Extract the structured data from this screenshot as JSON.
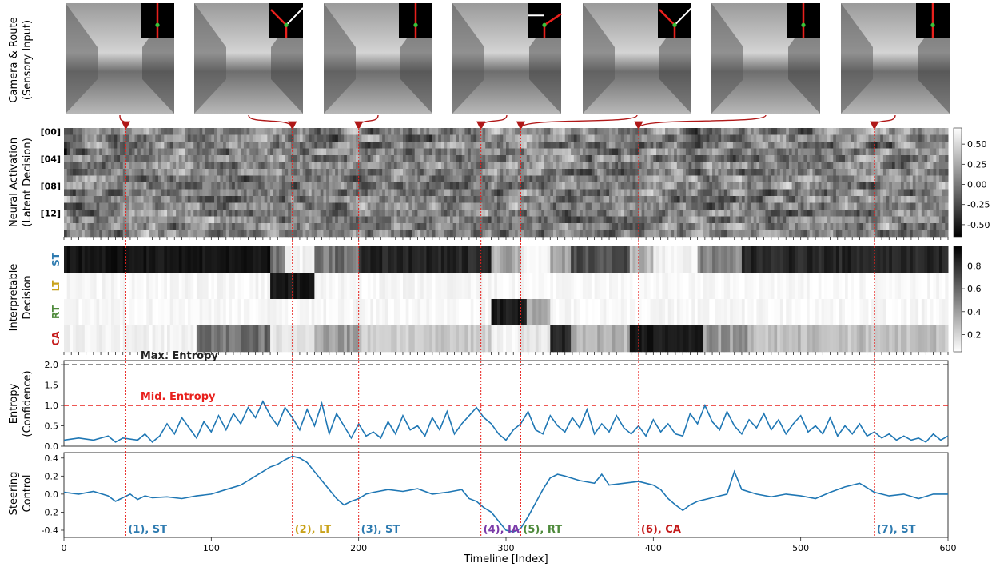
{
  "chart_data": [
    {
      "type": "image",
      "ylabel": [
        "Camera & Route",
        "(Sensory Input)"
      ],
      "frames": [
        {
          "route": "straight"
        },
        {
          "route": "left"
        },
        {
          "route": "straight"
        },
        {
          "route": "right"
        },
        {
          "route": "left"
        },
        {
          "route": "straight"
        },
        {
          "route": "straight"
        }
      ],
      "frame_targets": [
        42,
        155,
        200,
        283,
        310,
        390,
        550
      ]
    },
    {
      "type": "heatmap",
      "ylabel": [
        "Neural Activation",
        "(Latent Decision)"
      ],
      "row_ticks": [
        "[00]",
        "[04]",
        "[08]",
        "[12]"
      ],
      "rows": 16,
      "colorbar": {
        "min": -0.65,
        "max": 0.7,
        "ticks": [
          "0.50",
          "0.25",
          "0.00",
          "-0.25",
          "-0.50"
        ],
        "tick_values": [
          0.5,
          0.25,
          0,
          -0.25,
          -0.5
        ]
      }
    },
    {
      "type": "heatmap",
      "ylabel": [
        "Interpretable",
        "Decision"
      ],
      "rows": [
        {
          "label": "ST",
          "color": "#2e7bb0"
        },
        {
          "label": "LT",
          "color": "#c9a21a"
        },
        {
          "label": "RT",
          "color": "#4e8a3b"
        },
        {
          "label": "CA",
          "color": "#c41a1a"
        }
      ],
      "segments": {
        "ST": [
          [
            0,
            140,
            0.92
          ],
          [
            140,
            150,
            0.5
          ],
          [
            150,
            170,
            0.05
          ],
          [
            170,
            200,
            0.55
          ],
          [
            200,
            290,
            0.85
          ],
          [
            290,
            310,
            0.35
          ],
          [
            310,
            330,
            0.05
          ],
          [
            330,
            345,
            0.4
          ],
          [
            345,
            385,
            0.7
          ],
          [
            385,
            400,
            0.3
          ],
          [
            400,
            430,
            0.05
          ],
          [
            430,
            460,
            0.45
          ],
          [
            460,
            600,
            0.85
          ]
        ],
        "LT": [
          [
            0,
            140,
            0.03
          ],
          [
            140,
            170,
            0.9
          ],
          [
            170,
            300,
            0.03
          ],
          [
            300,
            600,
            0.02
          ]
        ],
        "RT": [
          [
            0,
            290,
            0.03
          ],
          [
            290,
            315,
            0.9
          ],
          [
            315,
            330,
            0.3
          ],
          [
            330,
            600,
            0.03
          ]
        ],
        "CA": [
          [
            0,
            90,
            0.05
          ],
          [
            90,
            140,
            0.55
          ],
          [
            140,
            170,
            0.1
          ],
          [
            170,
            200,
            0.4
          ],
          [
            200,
            290,
            0.2
          ],
          [
            290,
            310,
            0.05
          ],
          [
            310,
            330,
            0.1
          ],
          [
            330,
            345,
            0.85
          ],
          [
            345,
            385,
            0.3
          ],
          [
            385,
            435,
            0.9
          ],
          [
            435,
            465,
            0.4
          ],
          [
            465,
            600,
            0.25
          ]
        ]
      },
      "colorbar": {
        "min": 0.05,
        "max": 0.97,
        "ticks": [
          "0.8",
          "0.6",
          "0.4",
          "0.2"
        ],
        "tick_values": [
          0.8,
          0.6,
          0.4,
          0.2
        ]
      }
    },
    {
      "type": "line",
      "ylabel": [
        "Entropy",
        "(Confidence)"
      ],
      "ylim": [
        0,
        2.1
      ],
      "yticks": [
        "0.0",
        "0.5",
        "1.0",
        "1.5",
        "2.0"
      ],
      "ytick_values": [
        0,
        0.5,
        1.0,
        1.5,
        2.0
      ],
      "hlines": [
        {
          "value": 2.0,
          "label": "Max. Entropy",
          "color": "#222222"
        },
        {
          "value": 1.0,
          "label": "Mid. Entropy",
          "color": "#e8201c"
        }
      ],
      "series": [
        {
          "color": "#1f77b4",
          "x": [
            0,
            10,
            20,
            30,
            35,
            40,
            50,
            55,
            60,
            65,
            70,
            75,
            80,
            85,
            90,
            95,
            100,
            105,
            110,
            115,
            120,
            125,
            130,
            135,
            140,
            145,
            150,
            155,
            160,
            165,
            170,
            175,
            180,
            185,
            190,
            195,
            200,
            205,
            210,
            215,
            220,
            225,
            230,
            235,
            240,
            245,
            250,
            255,
            260,
            265,
            270,
            275,
            280,
            285,
            290,
            295,
            300,
            305,
            310,
            315,
            320,
            325,
            330,
            335,
            340,
            345,
            350,
            355,
            360,
            365,
            370,
            375,
            380,
            385,
            390,
            395,
            400,
            405,
            410,
            415,
            420,
            425,
            430,
            435,
            440,
            445,
            450,
            455,
            460,
            465,
            470,
            475,
            480,
            485,
            490,
            495,
            500,
            505,
            510,
            515,
            520,
            525,
            530,
            535,
            540,
            545,
            550,
            555,
            560,
            565,
            570,
            575,
            580,
            585,
            590,
            595,
            600
          ],
          "y": [
            0.15,
            0.2,
            0.15,
            0.25,
            0.1,
            0.2,
            0.15,
            0.3,
            0.1,
            0.25,
            0.55,
            0.3,
            0.7,
            0.45,
            0.2,
            0.6,
            0.35,
            0.75,
            0.4,
            0.8,
            0.55,
            0.95,
            0.7,
            1.1,
            0.75,
            0.5,
            0.95,
            0.7,
            0.4,
            0.9,
            0.5,
            1.05,
            0.3,
            0.8,
            0.5,
            0.2,
            0.55,
            0.25,
            0.35,
            0.2,
            0.6,
            0.3,
            0.75,
            0.4,
            0.5,
            0.25,
            0.7,
            0.4,
            0.85,
            0.3,
            0.55,
            0.75,
            0.95,
            0.7,
            0.55,
            0.3,
            0.15,
            0.4,
            0.55,
            0.85,
            0.4,
            0.3,
            0.75,
            0.5,
            0.35,
            0.7,
            0.45,
            0.9,
            0.3,
            0.55,
            0.35,
            0.75,
            0.45,
            0.3,
            0.5,
            0.25,
            0.65,
            0.35,
            0.55,
            0.3,
            0.25,
            0.8,
            0.55,
            1.0,
            0.6,
            0.4,
            0.85,
            0.5,
            0.3,
            0.65,
            0.45,
            0.8,
            0.4,
            0.65,
            0.3,
            0.55,
            0.75,
            0.35,
            0.5,
            0.3,
            0.7,
            0.25,
            0.5,
            0.3,
            0.55,
            0.25,
            0.35,
            0.2,
            0.3,
            0.15,
            0.25,
            0.15,
            0.2,
            0.1,
            0.3,
            0.15,
            0.25
          ]
        }
      ]
    },
    {
      "type": "line",
      "ylabel": [
        "Steering",
        "Control"
      ],
      "xlabel": "Timeline [Index]",
      "xlim": [
        0,
        600
      ],
      "xticks": [
        "0",
        "100",
        "200",
        "300",
        "400",
        "500",
        "600"
      ],
      "xtick_values": [
        0,
        100,
        200,
        300,
        400,
        500,
        600
      ],
      "ylim": [
        -0.48,
        0.46
      ],
      "yticks": [
        "0.4",
        "0.2",
        "0.0",
        "-0.2",
        "-0.4"
      ],
      "ytick_values": [
        0.4,
        0.2,
        0.0,
        -0.2,
        -0.4
      ],
      "series": [
        {
          "color": "#1f77b4",
          "x": [
            0,
            10,
            20,
            30,
            35,
            40,
            45,
            50,
            55,
            60,
            70,
            80,
            90,
            100,
            110,
            120,
            125,
            130,
            135,
            140,
            145,
            150,
            155,
            160,
            165,
            170,
            175,
            180,
            185,
            190,
            195,
            200,
            205,
            210,
            220,
            230,
            240,
            250,
            260,
            270,
            275,
            280,
            285,
            290,
            295,
            300,
            305,
            310,
            315,
            320,
            325,
            330,
            335,
            340,
            350,
            360,
            365,
            370,
            380,
            390,
            395,
            400,
            405,
            410,
            415,
            420,
            425,
            430,
            440,
            450,
            455,
            460,
            470,
            480,
            490,
            500,
            510,
            520,
            530,
            540,
            550,
            560,
            570,
            580,
            590,
            600
          ],
          "y": [
            0.02,
            0.0,
            0.03,
            -0.02,
            -0.08,
            -0.04,
            0.0,
            -0.06,
            -0.02,
            -0.04,
            -0.03,
            -0.05,
            -0.02,
            0.0,
            0.05,
            0.1,
            0.15,
            0.2,
            0.25,
            0.3,
            0.33,
            0.38,
            0.42,
            0.4,
            0.35,
            0.25,
            0.15,
            0.05,
            -0.05,
            -0.12,
            -0.08,
            -0.05,
            0.0,
            0.02,
            0.05,
            0.03,
            0.06,
            0.0,
            0.02,
            0.05,
            -0.05,
            -0.08,
            -0.15,
            -0.2,
            -0.3,
            -0.4,
            -0.42,
            -0.38,
            -0.25,
            -0.1,
            0.05,
            0.18,
            0.22,
            0.2,
            0.15,
            0.12,
            0.22,
            0.1,
            0.12,
            0.14,
            0.12,
            0.1,
            0.05,
            -0.05,
            -0.12,
            -0.18,
            -0.12,
            -0.08,
            -0.04,
            0.0,
            0.25,
            0.05,
            0.0,
            -0.03,
            0.0,
            -0.02,
            -0.05,
            0.02,
            0.08,
            0.12,
            0.02,
            -0.02,
            0.0,
            -0.05,
            0.0,
            0.0
          ]
        }
      ]
    }
  ],
  "event_markers": [
    {
      "x": 42,
      "label": "(1), ST",
      "color": "#2e7bb0"
    },
    {
      "x": 155,
      "label": "(2), LT",
      "color": "#c9a21a"
    },
    {
      "x": 200,
      "label": "(3), ST",
      "color": "#2e7bb0"
    },
    {
      "x": 283,
      "label": "(4), IA",
      "color": "#7a3aa8"
    },
    {
      "x": 310,
      "label": "(5), RT",
      "color": "#4e8a3b"
    },
    {
      "x": 390,
      "label": "(6), CA",
      "color": "#c41a1a"
    },
    {
      "x": 550,
      "label": "(7), ST",
      "color": "#2e7bb0"
    }
  ],
  "colors": {
    "marker_line": "#e8201c",
    "arrow": "#b01818",
    "axis": "#222222"
  }
}
